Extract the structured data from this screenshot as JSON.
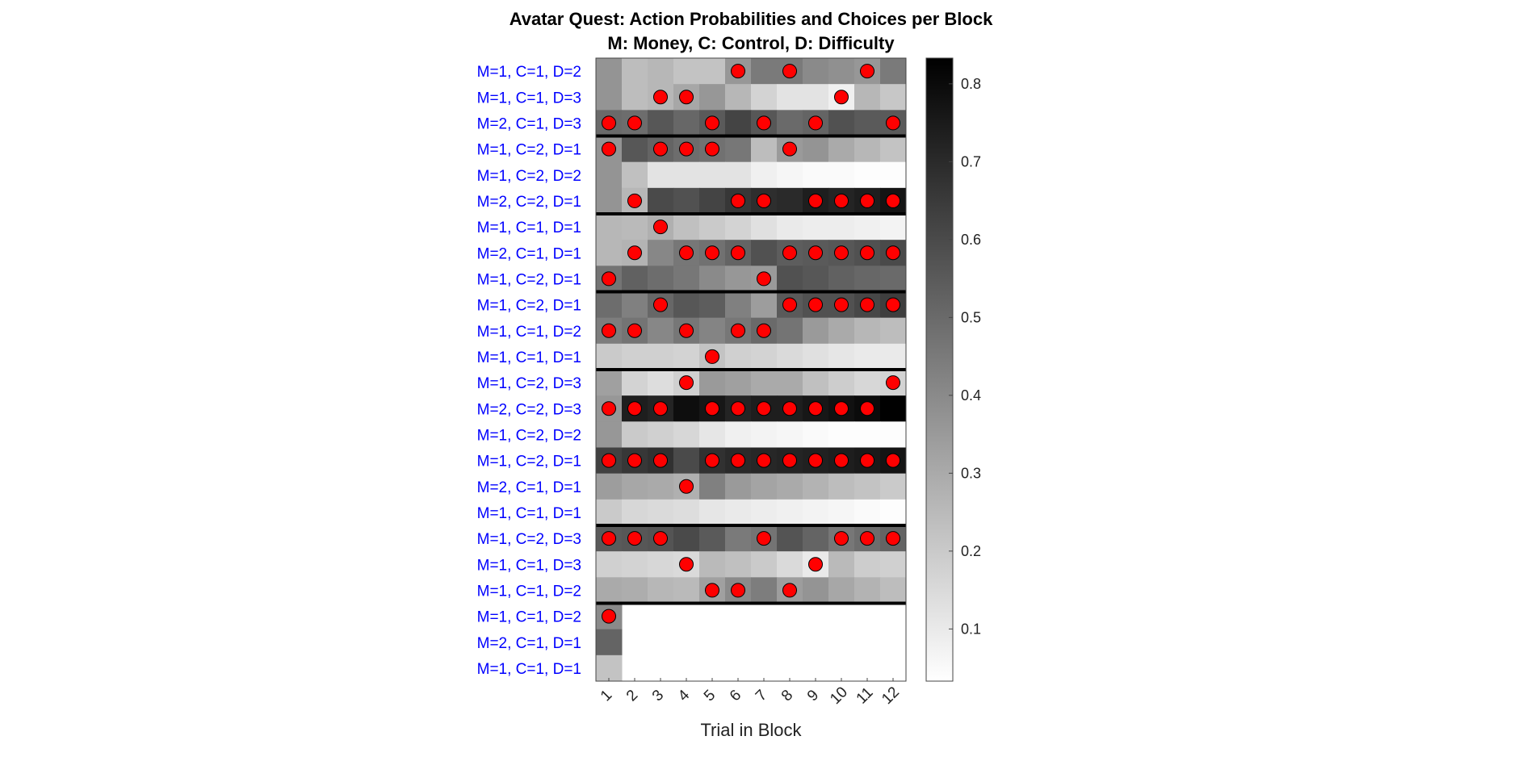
{
  "chart_data": {
    "type": "heatmap",
    "title": "Avatar Quest: Action Probabilities and Choices per Block",
    "subtitle": "M: Money, C: Control, D: Difficulty",
    "xlabel": "Trial in Block",
    "ylabel": "",
    "x": [
      "1",
      "2",
      "3",
      "4",
      "5",
      "6",
      "7",
      "8",
      "9",
      "10",
      "11",
      "12"
    ],
    "row_labels": [
      "M=1, C=1, D=2",
      "M=1, C=1, D=3",
      "M=2, C=1, D=3",
      "M=1, C=2, D=1",
      "M=1, C=2, D=2",
      "M=2, C=2, D=1",
      "M=1, C=1, D=1",
      "M=2, C=1, D=1",
      "M=1, C=2, D=1",
      "M=1, C=2, D=1",
      "M=1, C=1, D=2",
      "M=1, C=1, D=1",
      "M=1, C=2, D=3",
      "M=2, C=2, D=3",
      "M=1, C=2, D=2",
      "M=1, C=2, D=1",
      "M=2, C=1, D=1",
      "M=1, C=1, D=1",
      "M=1, C=2, D=3",
      "M=1, C=1, D=3",
      "M=1, C=1, D=2",
      "M=1, C=1, D=2",
      "M=2, C=1, D=1",
      "M=1, C=1, D=1"
    ],
    "label_color": "#0000ff",
    "block_separators_after_rows": [
      3,
      6,
      9,
      12,
      18,
      21
    ],
    "values": [
      [
        0.37,
        0.24,
        0.26,
        0.22,
        0.22,
        0.36,
        0.45,
        0.45,
        0.4,
        0.38,
        0.36,
        0.45
      ],
      [
        0.37,
        0.24,
        0.26,
        0.31,
        0.36,
        0.26,
        0.17,
        0.12,
        0.12,
        0.08,
        0.26,
        0.21
      ],
      [
        0.5,
        0.49,
        0.56,
        0.51,
        0.55,
        0.62,
        0.56,
        0.5,
        0.52,
        0.58,
        0.55,
        0.55
      ],
      [
        0.37,
        0.56,
        0.52,
        0.49,
        0.48,
        0.46,
        0.24,
        0.35,
        0.37,
        0.3,
        0.26,
        0.22
      ],
      [
        0.37,
        0.23,
        0.12,
        0.12,
        0.12,
        0.12,
        0.08,
        0.06,
        0.05,
        0.05,
        0.04,
        0.04
      ],
      [
        0.37,
        0.26,
        0.6,
        0.58,
        0.62,
        0.66,
        0.69,
        0.7,
        0.74,
        0.72,
        0.74,
        0.77
      ],
      [
        0.26,
        0.25,
        0.28,
        0.23,
        0.2,
        0.17,
        0.13,
        0.1,
        0.09,
        0.09,
        0.08,
        0.07
      ],
      [
        0.26,
        0.27,
        0.41,
        0.46,
        0.48,
        0.52,
        0.58,
        0.54,
        0.55,
        0.56,
        0.58,
        0.6
      ],
      [
        0.47,
        0.53,
        0.49,
        0.46,
        0.4,
        0.36,
        0.35,
        0.58,
        0.56,
        0.53,
        0.51,
        0.5
      ],
      [
        0.49,
        0.43,
        0.51,
        0.56,
        0.54,
        0.43,
        0.34,
        0.55,
        0.58,
        0.58,
        0.61,
        0.64
      ],
      [
        0.44,
        0.47,
        0.41,
        0.46,
        0.42,
        0.46,
        0.5,
        0.47,
        0.35,
        0.3,
        0.26,
        0.24
      ],
      [
        0.2,
        0.18,
        0.18,
        0.17,
        0.22,
        0.18,
        0.17,
        0.15,
        0.13,
        0.11,
        0.1,
        0.1
      ],
      [
        0.33,
        0.17,
        0.14,
        0.18,
        0.35,
        0.33,
        0.3,
        0.3,
        0.23,
        0.19,
        0.16,
        0.17
      ],
      [
        0.36,
        0.74,
        0.72,
        0.79,
        0.76,
        0.72,
        0.74,
        0.74,
        0.76,
        0.78,
        0.8,
        0.83
      ],
      [
        0.36,
        0.2,
        0.18,
        0.16,
        0.11,
        0.08,
        0.07,
        0.06,
        0.05,
        0.04,
        0.04,
        0.04
      ],
      [
        0.63,
        0.66,
        0.68,
        0.6,
        0.68,
        0.7,
        0.71,
        0.72,
        0.73,
        0.74,
        0.75,
        0.77
      ],
      [
        0.34,
        0.31,
        0.3,
        0.28,
        0.43,
        0.35,
        0.32,
        0.3,
        0.27,
        0.24,
        0.22,
        0.2
      ],
      [
        0.2,
        0.16,
        0.15,
        0.14,
        0.11,
        0.1,
        0.09,
        0.08,
        0.07,
        0.06,
        0.05,
        0.04
      ],
      [
        0.55,
        0.56,
        0.57,
        0.6,
        0.55,
        0.45,
        0.47,
        0.57,
        0.52,
        0.46,
        0.49,
        0.52
      ],
      [
        0.18,
        0.17,
        0.16,
        0.15,
        0.25,
        0.23,
        0.2,
        0.15,
        0.1,
        0.25,
        0.19,
        0.18
      ],
      [
        0.3,
        0.29,
        0.26,
        0.25,
        0.33,
        0.4,
        0.44,
        0.34,
        0.37,
        0.31,
        0.27,
        0.24
      ],
      [
        0.4,
        null,
        null,
        null,
        null,
        null,
        null,
        null,
        null,
        null,
        null,
        null
      ],
      [
        0.52,
        null,
        null,
        null,
        null,
        null,
        null,
        null,
        null,
        null,
        null,
        null
      ],
      [
        0.22,
        null,
        null,
        null,
        null,
        null,
        null,
        null,
        null,
        null,
        null,
        null
      ]
    ],
    "choices": [
      [
        0,
        0,
        0,
        0,
        0,
        1,
        0,
        1,
        0,
        0,
        1,
        0
      ],
      [
        0,
        0,
        1,
        1,
        0,
        0,
        0,
        0,
        0,
        1,
        0,
        0
      ],
      [
        1,
        1,
        0,
        0,
        1,
        0,
        1,
        0,
        1,
        0,
        0,
        1
      ],
      [
        1,
        0,
        1,
        1,
        1,
        0,
        0,
        1,
        0,
        0,
        0,
        0
      ],
      [
        0,
        0,
        0,
        0,
        0,
        0,
        0,
        0,
        0,
        0,
        0,
        0
      ],
      [
        0,
        1,
        0,
        0,
        0,
        1,
        1,
        0,
        1,
        1,
        1,
        1
      ],
      [
        0,
        0,
        1,
        0,
        0,
        0,
        0,
        0,
        0,
        0,
        0,
        0
      ],
      [
        0,
        1,
        0,
        1,
        1,
        1,
        0,
        1,
        1,
        1,
        1,
        1
      ],
      [
        1,
        0,
        0,
        0,
        0,
        0,
        1,
        0,
        0,
        0,
        0,
        0
      ],
      [
        0,
        0,
        1,
        0,
        0,
        0,
        0,
        1,
        1,
        1,
        1,
        1
      ],
      [
        1,
        1,
        0,
        1,
        0,
        1,
        1,
        0,
        0,
        0,
        0,
        0
      ],
      [
        0,
        0,
        0,
        0,
        1,
        0,
        0,
        0,
        0,
        0,
        0,
        0
      ],
      [
        0,
        0,
        0,
        1,
        0,
        0,
        0,
        0,
        0,
        0,
        0,
        1
      ],
      [
        1,
        1,
        1,
        0,
        1,
        1,
        1,
        1,
        1,
        1,
        1,
        0
      ],
      [
        0,
        0,
        0,
        0,
        0,
        0,
        0,
        0,
        0,
        0,
        0,
        0
      ],
      [
        1,
        1,
        1,
        0,
        1,
        1,
        1,
        1,
        1,
        1,
        1,
        1
      ],
      [
        0,
        0,
        0,
        1,
        0,
        0,
        0,
        0,
        0,
        0,
        0,
        0
      ],
      [
        0,
        0,
        0,
        0,
        0,
        0,
        0,
        0,
        0,
        0,
        0,
        0
      ],
      [
        1,
        1,
        1,
        0,
        0,
        0,
        1,
        0,
        0,
        1,
        1,
        1
      ],
      [
        0,
        0,
        0,
        1,
        0,
        0,
        0,
        0,
        1,
        0,
        0,
        0
      ],
      [
        0,
        0,
        0,
        0,
        1,
        1,
        0,
        1,
        0,
        0,
        0,
        0
      ],
      [
        1,
        0,
        0,
        0,
        0,
        0,
        0,
        0,
        0,
        0,
        0,
        0
      ],
      [
        0,
        0,
        0,
        0,
        0,
        0,
        0,
        0,
        0,
        0,
        0,
        0
      ],
      [
        0,
        0,
        0,
        0,
        0,
        0,
        0,
        0,
        0,
        0,
        0,
        0
      ]
    ],
    "marker_color": "#ff0000",
    "colorbar": {
      "range": [
        0.033,
        0.833
      ],
      "ticks": [
        "0.1",
        "0.2",
        "0.3",
        "0.4",
        "0.5",
        "0.6",
        "0.7",
        "0.8"
      ],
      "colormap": "gray (white = low, black = high)"
    }
  }
}
